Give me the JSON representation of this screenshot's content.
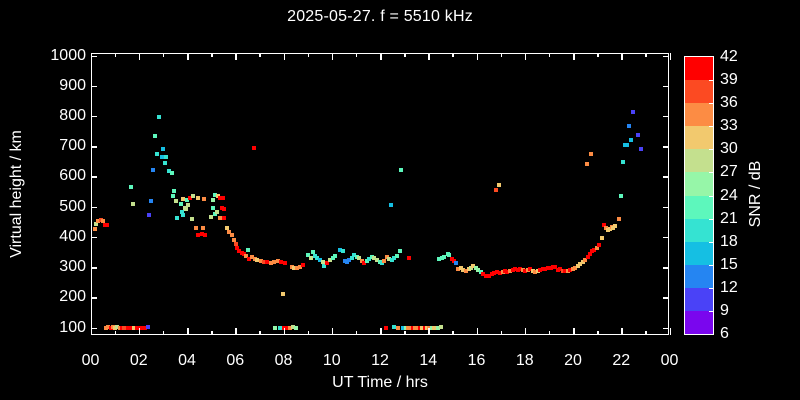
{
  "chart_data": {
    "type": "scatter",
    "title": "2025-05-27. f = 5510 kHz",
    "xlabel": "UT Time / hrs",
    "ylabel": "Virtual height / km",
    "cblabel": "SNR / dB",
    "x_range_hours": [
      0,
      24
    ],
    "y_range_km": [
      100,
      1000
    ],
    "grid": false,
    "background": "#000000",
    "frame_color": "#ffffff",
    "x_ticks": {
      "values": [
        0,
        2,
        4,
        6,
        8,
        10,
        12,
        14,
        16,
        18,
        20,
        22,
        24
      ],
      "labels": [
        "00",
        "02",
        "04",
        "06",
        "08",
        "10",
        "12",
        "14",
        "16",
        "18",
        "20",
        "22",
        "00"
      ],
      "minor_every_hours": 1
    },
    "y_ticks": {
      "values": [
        100,
        200,
        300,
        400,
        500,
        600,
        700,
        800,
        900,
        1000
      ],
      "labels": [
        "100",
        "200",
        "300",
        "400",
        "500",
        "600",
        "700",
        "800",
        "900",
        "1000"
      ]
    },
    "colorbar": {
      "position": "right",
      "tick_labels": [
        "42",
        "39",
        "36",
        "33",
        "30",
        "27",
        "24",
        "21",
        "18",
        "15",
        "12",
        "9",
        "6"
      ],
      "range_db": [
        6,
        42
      ],
      "palette_low_to_high": [
        "#7a06ee",
        "#4a42f7",
        "#2585f2",
        "#15bfe3",
        "#35e3d2",
        "#5df7bc",
        "#96f6a8",
        "#c4e08e",
        "#f2c96e",
        "#fc8c44",
        "#fc4a22",
        "#ff0000"
      ]
    },
    "points_format": [
      "ut_hours",
      "virtual_height_km",
      "snr_color_index_0to11"
    ],
    "points": [
      [
        0.2,
        426,
        9
      ],
      [
        0.24,
        443,
        7
      ],
      [
        0.31,
        454,
        9
      ],
      [
        0.42,
        456,
        10
      ],
      [
        0.51,
        454,
        9
      ],
      [
        0.59,
        438,
        11
      ],
      [
        0.68,
        438,
        11
      ],
      [
        0.64,
        100,
        9
      ],
      [
        0.74,
        102,
        9
      ],
      [
        0.84,
        98,
        11
      ],
      [
        0.92,
        102,
        9
      ],
      [
        1.02,
        100,
        8
      ],
      [
        1.11,
        102,
        7
      ],
      [
        1.21,
        98,
        9
      ],
      [
        1.29,
        100,
        11
      ],
      [
        1.4,
        98,
        10
      ],
      [
        1.54,
        100,
        11
      ],
      [
        1.68,
        98,
        11
      ],
      [
        1.82,
        100,
        8
      ],
      [
        1.93,
        98,
        11
      ],
      [
        2.04,
        100,
        11
      ],
      [
        2.15,
        98,
        11
      ],
      [
        2.26,
        100,
        11
      ],
      [
        2.4,
        102,
        1
      ],
      [
        1.67,
        566,
        5
      ],
      [
        1.78,
        509,
        7
      ],
      [
        2.42,
        472,
        1
      ],
      [
        2.5,
        518,
        2
      ],
      [
        2.58,
        622,
        2
      ],
      [
        2.67,
        733,
        5
      ],
      [
        2.77,
        674,
        4
      ],
      [
        2.84,
        797,
        4
      ],
      [
        2.95,
        666,
        3
      ],
      [
        2.99,
        691,
        3
      ],
      [
        3.09,
        644,
        4
      ],
      [
        3.13,
        663,
        4
      ],
      [
        3.27,
        618,
        4
      ],
      [
        3.37,
        612,
        5
      ],
      [
        3.43,
        537,
        5
      ],
      [
        3.48,
        553,
        5
      ],
      [
        3.53,
        519,
        7
      ],
      [
        3.6,
        464,
        4
      ],
      [
        3.74,
        509,
        5
      ],
      [
        3.78,
        482,
        4
      ],
      [
        3.82,
        473,
        4
      ],
      [
        3.85,
        526,
        8
      ],
      [
        3.92,
        495,
        7
      ],
      [
        3.96,
        493,
        7
      ],
      [
        4.01,
        523,
        5
      ],
      [
        4.05,
        506,
        7
      ],
      [
        4.12,
        530,
        11
      ],
      [
        4.19,
        460,
        7
      ],
      [
        4.24,
        537,
        7
      ],
      [
        4.37,
        431,
        9
      ],
      [
        4.47,
        530,
        8
      ],
      [
        4.47,
        407,
        11
      ],
      [
        4.61,
        409,
        11
      ],
      [
        4.65,
        431,
        9
      ],
      [
        4.7,
        526,
        9
      ],
      [
        4.75,
        405,
        11
      ],
      [
        5.01,
        467,
        7
      ],
      [
        5.09,
        523,
        6
      ],
      [
        5.09,
        495,
        5
      ],
      [
        5.16,
        539,
        5
      ],
      [
        5.18,
        475,
        5
      ],
      [
        5.23,
        482,
        7
      ],
      [
        5.3,
        534,
        8
      ],
      [
        5.37,
        528,
        11
      ],
      [
        5.37,
        464,
        9
      ],
      [
        5.46,
        495,
        11
      ],
      [
        5.5,
        530,
        11
      ],
      [
        5.55,
        493,
        11
      ],
      [
        5.55,
        464,
        11
      ],
      [
        5.67,
        429,
        8
      ],
      [
        5.75,
        416,
        9
      ],
      [
        5.85,
        405,
        9
      ],
      [
        5.95,
        390,
        9
      ],
      [
        6.03,
        376,
        10
      ],
      [
        6.08,
        363,
        11
      ],
      [
        6.17,
        352,
        11
      ],
      [
        6.27,
        346,
        11
      ],
      [
        6.36,
        343,
        11
      ],
      [
        6.45,
        338,
        9
      ],
      [
        6.54,
        357,
        5
      ],
      [
        6.55,
        328,
        11
      ],
      [
        6.78,
        695,
        11
      ],
      [
        6.68,
        335,
        9
      ],
      [
        6.81,
        327,
        9
      ],
      [
        6.91,
        324,
        8
      ],
      [
        7.06,
        321,
        9
      ],
      [
        7.19,
        318,
        10
      ],
      [
        7.33,
        316,
        11
      ],
      [
        7.47,
        313,
        9
      ],
      [
        7.62,
        316,
        9
      ],
      [
        7.76,
        321,
        9
      ],
      [
        7.88,
        316,
        11
      ],
      [
        8.06,
        313,
        11
      ],
      [
        8.34,
        302,
        9
      ],
      [
        8.45,
        299,
        8
      ],
      [
        8.57,
        299,
        9
      ],
      [
        8.68,
        302,
        9
      ],
      [
        8.82,
        308,
        11
      ],
      [
        7.99,
        212,
        8
      ],
      [
        7.65,
        100,
        6
      ],
      [
        7.86,
        100,
        4
      ],
      [
        8.02,
        98,
        11
      ],
      [
        8.15,
        100,
        11
      ],
      [
        8.27,
        100,
        9
      ],
      [
        8.4,
        102,
        7
      ],
      [
        8.51,
        100,
        6
      ],
      [
        9.03,
        341,
        5
      ],
      [
        9.13,
        332,
        7
      ],
      [
        9.21,
        350,
        5
      ],
      [
        9.31,
        338,
        4
      ],
      [
        9.4,
        330,
        4
      ],
      [
        9.51,
        324,
        3
      ],
      [
        9.62,
        316,
        7
      ],
      [
        9.69,
        305,
        4
      ],
      [
        9.79,
        313,
        11
      ],
      [
        9.93,
        324,
        7
      ],
      [
        10.04,
        332,
        5
      ],
      [
        10.13,
        338,
        5
      ],
      [
        10.34,
        357,
        3
      ],
      [
        10.45,
        352,
        4
      ],
      [
        10.55,
        321,
        2
      ],
      [
        10.65,
        318,
        2
      ],
      [
        10.73,
        324,
        2
      ],
      [
        10.83,
        332,
        4
      ],
      [
        10.92,
        341,
        4
      ],
      [
        11.04,
        335,
        5
      ],
      [
        11.14,
        332,
        7
      ],
      [
        11.24,
        321,
        9
      ],
      [
        11.34,
        313,
        11
      ],
      [
        11.45,
        321,
        5
      ],
      [
        11.56,
        327,
        4
      ],
      [
        11.66,
        335,
        5
      ],
      [
        11.76,
        330,
        7
      ],
      [
        11.87,
        324,
        7
      ],
      [
        11.98,
        318,
        5
      ],
      [
        12.07,
        313,
        4
      ],
      [
        12.17,
        321,
        9
      ],
      [
        12.28,
        335,
        9
      ],
      [
        12.37,
        327,
        7
      ],
      [
        12.49,
        323,
        4
      ],
      [
        12.58,
        332,
        4
      ],
      [
        12.69,
        338,
        5
      ],
      [
        12.83,
        354,
        5
      ],
      [
        13.2,
        332,
        11
      ],
      [
        12.46,
        507,
        3
      ],
      [
        12.88,
        621,
        5
      ],
      [
        12.24,
        100,
        11
      ],
      [
        12.6,
        102,
        4
      ],
      [
        12.76,
        100,
        9
      ],
      [
        12.97,
        98,
        3
      ],
      [
        13.07,
        100,
        6
      ],
      [
        13.18,
        98,
        9
      ],
      [
        13.28,
        100,
        9
      ],
      [
        13.37,
        98,
        11
      ],
      [
        13.47,
        100,
        9
      ],
      [
        13.57,
        98,
        9
      ],
      [
        13.66,
        100,
        11
      ],
      [
        13.76,
        98,
        8
      ],
      [
        13.86,
        100,
        11
      ],
      [
        13.95,
        98,
        8
      ],
      [
        14.05,
        100,
        9
      ],
      [
        14.15,
        98,
        6
      ],
      [
        14.25,
        100,
        8
      ],
      [
        14.4,
        100,
        6
      ],
      [
        14.53,
        102,
        7
      ],
      [
        14.46,
        327,
        5
      ],
      [
        14.56,
        330,
        5
      ],
      [
        14.65,
        334,
        5
      ],
      [
        14.83,
        343,
        5
      ],
      [
        14.88,
        341,
        5
      ],
      [
        15.0,
        327,
        11
      ],
      [
        15.08,
        319,
        11
      ],
      [
        15.14,
        313,
        2
      ],
      [
        15.25,
        294,
        9
      ],
      [
        15.35,
        299,
        8
      ],
      [
        15.46,
        291,
        8
      ],
      [
        15.56,
        288,
        9
      ],
      [
        15.67,
        294,
        8
      ],
      [
        15.78,
        299,
        7
      ],
      [
        15.87,
        305,
        8
      ],
      [
        15.99,
        299,
        6
      ],
      [
        16.08,
        291,
        6
      ],
      [
        16.18,
        283,
        5
      ],
      [
        16.29,
        276,
        11
      ],
      [
        16.4,
        272,
        11
      ],
      [
        16.51,
        272,
        11
      ],
      [
        16.63,
        276,
        11
      ],
      [
        16.74,
        280,
        11
      ],
      [
        16.86,
        283,
        11
      ],
      [
        16.97,
        280,
        11
      ],
      [
        17.08,
        283,
        9
      ],
      [
        17.18,
        288,
        11
      ],
      [
        17.28,
        283,
        11
      ],
      [
        17.39,
        288,
        9
      ],
      [
        17.5,
        291,
        11
      ],
      [
        17.6,
        294,
        11
      ],
      [
        17.7,
        291,
        11
      ],
      [
        17.81,
        294,
        11
      ],
      [
        17.92,
        291,
        9
      ],
      [
        18.02,
        288,
        11
      ],
      [
        18.13,
        291,
        9
      ],
      [
        18.23,
        294,
        11
      ],
      [
        18.34,
        288,
        8
      ],
      [
        18.44,
        283,
        9
      ],
      [
        18.55,
        288,
        8
      ],
      [
        18.65,
        291,
        11
      ],
      [
        18.76,
        294,
        11
      ],
      [
        18.86,
        294,
        11
      ],
      [
        18.97,
        299,
        11
      ],
      [
        19.07,
        299,
        11
      ],
      [
        19.18,
        302,
        11
      ],
      [
        19.27,
        302,
        11
      ],
      [
        19.37,
        291,
        11
      ],
      [
        16.8,
        555,
        10
      ],
      [
        16.93,
        571,
        8
      ],
      [
        19.47,
        294,
        11
      ],
      [
        19.58,
        288,
        10
      ],
      [
        19.68,
        288,
        11
      ],
      [
        19.79,
        288,
        9
      ],
      [
        19.88,
        291,
        11
      ],
      [
        20.0,
        294,
        9
      ],
      [
        20.09,
        299,
        9
      ],
      [
        20.2,
        305,
        8
      ],
      [
        20.3,
        310,
        8
      ],
      [
        20.41,
        316,
        8
      ],
      [
        20.5,
        324,
        9
      ],
      [
        20.61,
        335,
        11
      ],
      [
        20.71,
        343,
        11
      ],
      [
        20.8,
        352,
        11
      ],
      [
        20.89,
        357,
        11
      ],
      [
        20.98,
        365,
        9
      ],
      [
        21.06,
        374,
        11
      ],
      [
        21.19,
        398,
        8
      ],
      [
        21.3,
        440,
        11
      ],
      [
        21.37,
        428,
        9
      ],
      [
        21.46,
        423,
        8
      ],
      [
        21.53,
        426,
        8
      ],
      [
        21.6,
        432,
        9
      ],
      [
        21.67,
        428,
        8
      ],
      [
        21.74,
        437,
        8
      ],
      [
        21.9,
        460,
        9
      ],
      [
        21.97,
        537,
        5
      ],
      [
        20.58,
        642,
        9
      ],
      [
        20.76,
        675,
        9
      ],
      [
        22.06,
        648,
        4
      ],
      [
        22.14,
        703,
        3
      ],
      [
        22.23,
        705,
        3
      ],
      [
        22.34,
        766,
        2
      ],
      [
        22.4,
        719,
        3
      ],
      [
        22.5,
        812,
        1
      ],
      [
        22.68,
        738,
        1
      ],
      [
        22.81,
        692,
        1
      ]
    ]
  }
}
